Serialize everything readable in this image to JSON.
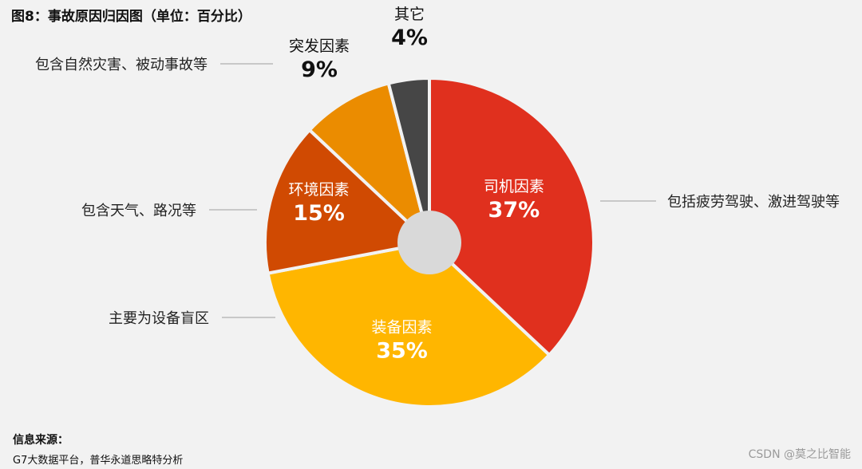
{
  "title": "图8：事故原因归因图（单位：百分比）",
  "source": {
    "label": "信息来源：",
    "text": "G7大数据平台，普华永道思略特分析"
  },
  "watermark": "CSDN @莫之比智能",
  "chart_data": {
    "type": "pie",
    "title": "图8：事故原因归因图（单位：百分比）",
    "unit": "%",
    "slices": [
      {
        "name": "司机因素",
        "value": 37,
        "label": "37%",
        "note": "包括疲劳驾驶、激进驾驶等",
        "color": "#e0301e"
      },
      {
        "name": "装备因素",
        "value": 35,
        "label": "35%",
        "note": "主要为设备盲区",
        "color": "#ffb600"
      },
      {
        "name": "环境因素",
        "value": 15,
        "label": "15%",
        "note": "包含天气、路况等",
        "color": "#d04a02"
      },
      {
        "name": "突发因素",
        "value": 9,
        "label": "9%",
        "note": "包含自然灾害、被动事故等",
        "color": "#eb8c00"
      },
      {
        "name": "其它",
        "value": 4,
        "label": "4%",
        "note": "",
        "color": "#464646"
      }
    ]
  }
}
